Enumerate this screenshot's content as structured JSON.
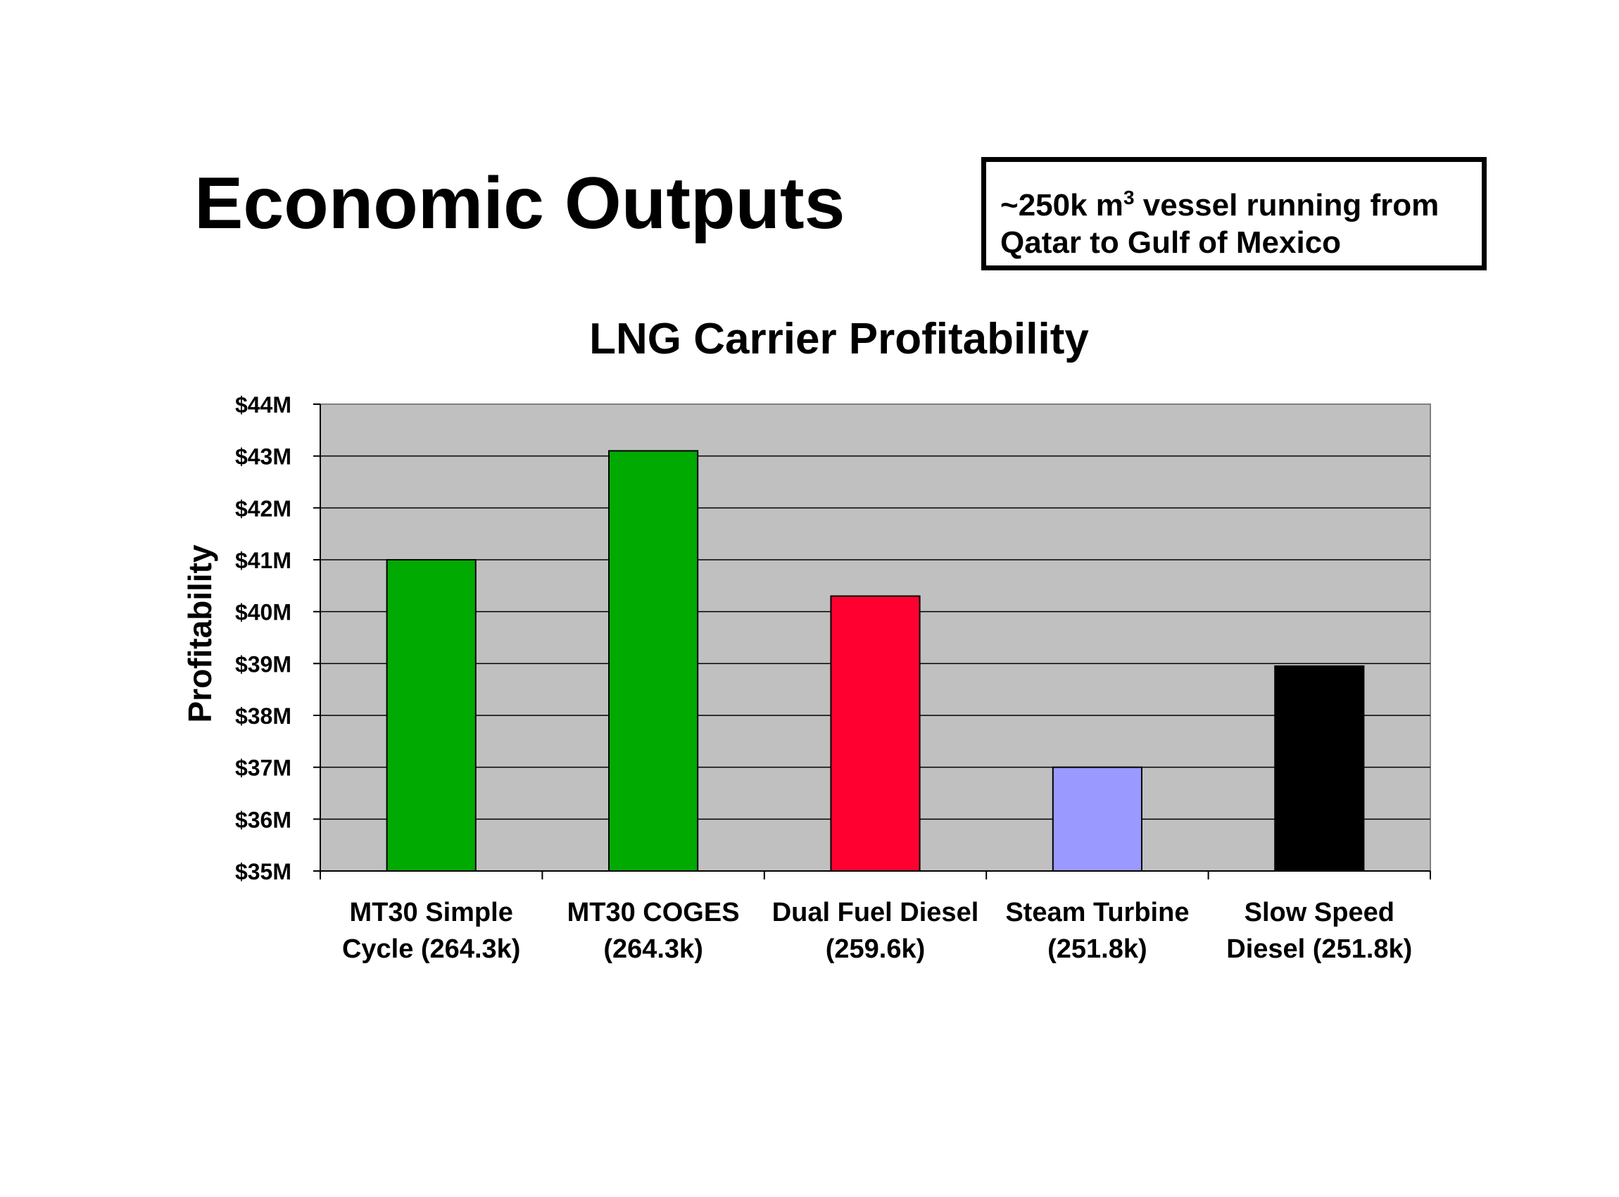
{
  "slide": {
    "title": "Economic Outputs",
    "note": {
      "prefix": "~250k m",
      "superscript": "3",
      "line1_rest": " vessel running from",
      "line2": "Qatar to Gulf of Mexico"
    }
  },
  "chart_data": {
    "type": "bar",
    "title": "LNG Carrier Profitability",
    "xlabel": "",
    "ylabel": "Profitability",
    "categories": [
      [
        "MT30 Simple",
        "Cycle (264.3k)"
      ],
      [
        "MT30 COGES",
        "(264.3k)"
      ],
      [
        "Dual Fuel Diesel",
        "(259.6k)"
      ],
      [
        "Steam Turbine",
        "(251.8k)"
      ],
      [
        "Slow Speed",
        "Diesel (251.8k)"
      ]
    ],
    "values": [
      41.0,
      43.1,
      40.3,
      37.0,
      38.95
    ],
    "bar_colors": [
      "#00AA00",
      "#00AA00",
      "#FF0030",
      "#9999FF",
      "#000000"
    ],
    "ylim": [
      35,
      44
    ],
    "yticks": [
      "$35M",
      "$36M",
      "$37M",
      "$38M",
      "$39M",
      "$40M",
      "$41M",
      "$42M",
      "$43M",
      "$44M"
    ],
    "grid": true,
    "plot_background": "#C0C0C0",
    "legend": "none"
  }
}
